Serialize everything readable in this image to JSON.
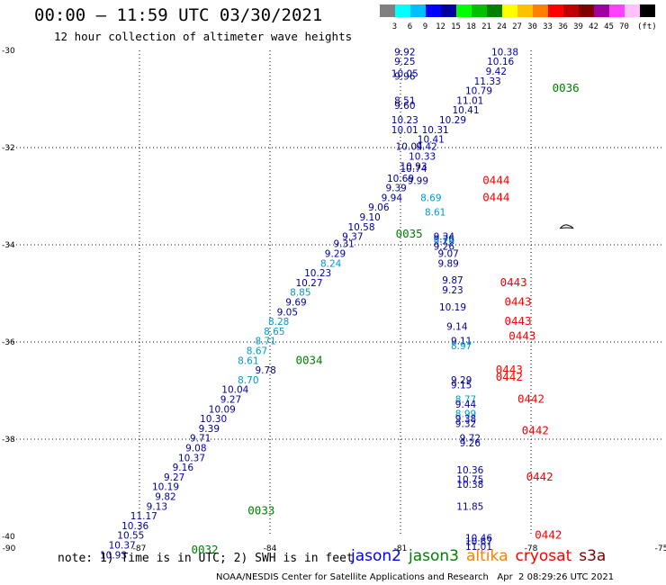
{
  "title": "00:00 – 11:59 UTC 03/30/2021",
  "subtitle": "12 hour collection of altimeter wave heights",
  "color_scale": {
    "unit": "(ft)",
    "bins": [
      {
        "label": "",
        "color": "#808080"
      },
      {
        "label": "3",
        "color": "#00ffff"
      },
      {
        "label": "6",
        "color": "#00bfff"
      },
      {
        "label": "9",
        "color": "#0000ff"
      },
      {
        "label": "12",
        "color": "#0000a0"
      },
      {
        "label": "15",
        "color": "#00ff00"
      },
      {
        "label": "18",
        "color": "#00c000"
      },
      {
        "label": "21",
        "color": "#008000"
      },
      {
        "label": "24",
        "color": "#ffff00"
      },
      {
        "label": "27",
        "color": "#ffc000"
      },
      {
        "label": "30",
        "color": "#ff8000"
      },
      {
        "label": "33",
        "color": "#ff0000"
      },
      {
        "label": "36",
        "color": "#c00000"
      },
      {
        "label": "39",
        "color": "#800000"
      },
      {
        "label": "42",
        "color": "#a000a0"
      },
      {
        "label": "45",
        "color": "#ff40ff"
      },
      {
        "label": "70",
        "color": "#ffc0ff"
      },
      {
        "label": "",
        "color": "#000000"
      }
    ]
  },
  "map": {
    "lon_range": [
      -90,
      -75
    ],
    "lat_range": [
      -40,
      -30
    ],
    "lon_ticks": [
      {
        "v": -90,
        "t": "-90"
      },
      {
        "v": -87,
        "t": "-87"
      },
      {
        "v": -84,
        "t": "-84"
      },
      {
        "v": -81,
        "t": "-81"
      },
      {
        "v": -78,
        "t": "-78"
      },
      {
        "v": -75,
        "t": "-75"
      }
    ],
    "lat_ticks": [
      {
        "v": -30,
        "t": "-30"
      },
      {
        "v": -32,
        "t": "-32"
      },
      {
        "v": -34,
        "t": "-34"
      },
      {
        "v": -36,
        "t": "-36"
      },
      {
        "v": -38,
        "t": "-38"
      },
      {
        "v": -40,
        "t": "-40"
      }
    ],
    "colors": {
      "dark_blue": "#0000a0",
      "light_blue": "#0099cc",
      "green": "#008000",
      "red": "#ff0000"
    },
    "observations": [
      {
        "lon": -80.9,
        "lat": -30.1,
        "t": "9.92",
        "c": "dark_blue"
      },
      {
        "lon": -80.9,
        "lat": -30.3,
        "t": "9.25",
        "c": "dark_blue"
      },
      {
        "lon": -80.9,
        "lat": -30.55,
        "t": "10.05",
        "c": "dark_blue"
      },
      {
        "lon": -80.9,
        "lat": -30.6,
        "t": "9.96",
        "c": "dark_blue"
      },
      {
        "lon": -78.6,
        "lat": -30.1,
        "t": "10.38",
        "c": "dark_blue"
      },
      {
        "lon": -78.7,
        "lat": -30.3,
        "t": "10.16",
        "c": "dark_blue"
      },
      {
        "lon": -78.8,
        "lat": -30.5,
        "t": "9.42",
        "c": "dark_blue"
      },
      {
        "lon": -79.0,
        "lat": -30.7,
        "t": "11.33",
        "c": "dark_blue"
      },
      {
        "lon": -79.2,
        "lat": -30.9,
        "t": "10.79",
        "c": "dark_blue"
      },
      {
        "lon": -79.4,
        "lat": -31.1,
        "t": "11.01",
        "c": "dark_blue"
      },
      {
        "lon": -79.5,
        "lat": -31.3,
        "t": "10.41",
        "c": "dark_blue"
      },
      {
        "lon": -80.9,
        "lat": -31.1,
        "t": "8.51",
        "c": "dark_blue"
      },
      {
        "lon": -80.9,
        "lat": -31.2,
        "t": "9.60",
        "c": "dark_blue"
      },
      {
        "lon": -80.9,
        "lat": -31.5,
        "t": "10.23",
        "c": "dark_blue"
      },
      {
        "lon": -79.8,
        "lat": -31.5,
        "t": "10.29",
        "c": "dark_blue"
      },
      {
        "lon": -80.9,
        "lat": -31.7,
        "t": "10.01",
        "c": "dark_blue"
      },
      {
        "lon": -80.2,
        "lat": -31.7,
        "t": "10.31",
        "c": "dark_blue"
      },
      {
        "lon": -80.3,
        "lat": -31.9,
        "t": "10.41",
        "c": "dark_blue"
      },
      {
        "lon": -80.8,
        "lat": -32.05,
        "t": "10.04",
        "c": "dark_blue"
      },
      {
        "lon": -80.4,
        "lat": -32.05,
        "t": "9.42",
        "c": "dark_blue"
      },
      {
        "lon": -80.5,
        "lat": -32.25,
        "t": "10.33",
        "c": "dark_blue"
      },
      {
        "lon": -80.7,
        "lat": -32.45,
        "t": "10.93",
        "c": "dark_blue"
      },
      {
        "lon": -80.7,
        "lat": -32.5,
        "t": "10.74",
        "c": "dark_blue"
      },
      {
        "lon": -81.0,
        "lat": -32.7,
        "t": "10.69",
        "c": "dark_blue"
      },
      {
        "lon": -80.6,
        "lat": -32.75,
        "t": "9.99",
        "c": "dark_blue"
      },
      {
        "lon": -81.1,
        "lat": -32.9,
        "t": "9.39",
        "c": "dark_blue"
      },
      {
        "lon": -81.2,
        "lat": -33.1,
        "t": "9.94",
        "c": "dark_blue"
      },
      {
        "lon": -80.3,
        "lat": -33.1,
        "t": "8.69",
        "c": "light_blue"
      },
      {
        "lon": -81.5,
        "lat": -33.3,
        "t": "9.06",
        "c": "dark_blue"
      },
      {
        "lon": -80.2,
        "lat": -33.4,
        "t": "8.61",
        "c": "light_blue"
      },
      {
        "lon": -81.7,
        "lat": -33.5,
        "t": "9.10",
        "c": "dark_blue"
      },
      {
        "lon": -81.9,
        "lat": -33.7,
        "t": "10.58",
        "c": "dark_blue"
      },
      {
        "lon": -82.1,
        "lat": -33.9,
        "t": "9.37",
        "c": "dark_blue"
      },
      {
        "lon": -80.0,
        "lat": -33.9,
        "t": "9.34",
        "c": "dark_blue"
      },
      {
        "lon": -80.0,
        "lat": -33.95,
        "t": "9.76",
        "c": "dark_blue"
      },
      {
        "lon": -80.0,
        "lat": -34.0,
        "t": "9.26",
        "c": "light_blue"
      },
      {
        "lon": -82.3,
        "lat": -34.05,
        "t": "9.31",
        "c": "dark_blue"
      },
      {
        "lon": -80.0,
        "lat": -34.1,
        "t": "9.26",
        "c": "dark_blue"
      },
      {
        "lon": -82.5,
        "lat": -34.25,
        "t": "9.29",
        "c": "dark_blue"
      },
      {
        "lon": -79.9,
        "lat": -34.25,
        "t": "9.07",
        "c": "dark_blue"
      },
      {
        "lon": -82.6,
        "lat": -34.45,
        "t": "8.24",
        "c": "light_blue"
      },
      {
        "lon": -79.9,
        "lat": -34.45,
        "t": "9.89",
        "c": "dark_blue"
      },
      {
        "lon": -82.9,
        "lat": -34.65,
        "t": "10.23",
        "c": "dark_blue"
      },
      {
        "lon": -79.8,
        "lat": -34.8,
        "t": "9.87",
        "c": "dark_blue"
      },
      {
        "lon": -83.1,
        "lat": -34.85,
        "t": "10.27",
        "c": "dark_blue"
      },
      {
        "lon": -79.8,
        "lat": -35.0,
        "t": "9.23",
        "c": "dark_blue"
      },
      {
        "lon": -83.3,
        "lat": -35.05,
        "t": "8.85",
        "c": "light_blue"
      },
      {
        "lon": -83.4,
        "lat": -35.25,
        "t": "9.69",
        "c": "dark_blue"
      },
      {
        "lon": -79.8,
        "lat": -35.35,
        "t": "10.19",
        "c": "dark_blue"
      },
      {
        "lon": -83.6,
        "lat": -35.45,
        "t": "9.05",
        "c": "dark_blue"
      },
      {
        "lon": -83.8,
        "lat": -35.65,
        "t": "8.28",
        "c": "light_blue"
      },
      {
        "lon": -79.7,
        "lat": -35.75,
        "t": "9.14",
        "c": "dark_blue"
      },
      {
        "lon": -83.9,
        "lat": -35.85,
        "t": "8.65",
        "c": "light_blue"
      },
      {
        "lon": -84.1,
        "lat": -36.05,
        "t": "8.71",
        "c": "light_blue"
      },
      {
        "lon": -79.6,
        "lat": -36.05,
        "t": "9.11",
        "c": "dark_blue"
      },
      {
        "lon": -79.6,
        "lat": -36.15,
        "t": "8.97",
        "c": "light_blue"
      },
      {
        "lon": -84.3,
        "lat": -36.25,
        "t": "8.67",
        "c": "light_blue"
      },
      {
        "lon": -84.5,
        "lat": -36.45,
        "t": "8.61",
        "c": "light_blue"
      },
      {
        "lon": -84.1,
        "lat": -36.65,
        "t": "9.78",
        "c": "dark_blue"
      },
      {
        "lon": -84.5,
        "lat": -36.85,
        "t": "8.70",
        "c": "light_blue"
      },
      {
        "lon": -79.6,
        "lat": -36.85,
        "t": "9.29",
        "c": "dark_blue"
      },
      {
        "lon": -79.6,
        "lat": -36.95,
        "t": "9.15",
        "c": "dark_blue"
      },
      {
        "lon": -84.8,
        "lat": -37.05,
        "t": "10.04",
        "c": "dark_blue"
      },
      {
        "lon": -84.9,
        "lat": -37.25,
        "t": "9.27",
        "c": "dark_blue"
      },
      {
        "lon": -79.5,
        "lat": -37.25,
        "t": "8.77",
        "c": "light_blue"
      },
      {
        "lon": -79.5,
        "lat": -37.35,
        "t": "9.44",
        "c": "dark_blue"
      },
      {
        "lon": -85.1,
        "lat": -37.45,
        "t": "10.09",
        "c": "dark_blue"
      },
      {
        "lon": -79.5,
        "lat": -37.55,
        "t": "8.99",
        "c": "light_blue"
      },
      {
        "lon": -79.5,
        "lat": -37.65,
        "t": "9.38",
        "c": "dark_blue"
      },
      {
        "lon": -85.3,
        "lat": -37.65,
        "t": "10.30",
        "c": "dark_blue"
      },
      {
        "lon": -79.5,
        "lat": -37.75,
        "t": "9.32",
        "c": "dark_blue"
      },
      {
        "lon": -85.4,
        "lat": -37.85,
        "t": "9.39",
        "c": "dark_blue"
      },
      {
        "lon": -85.6,
        "lat": -38.05,
        "t": "9.71",
        "c": "dark_blue"
      },
      {
        "lon": -79.4,
        "lat": -38.05,
        "t": "9.72",
        "c": "dark_blue"
      },
      {
        "lon": -79.4,
        "lat": -38.15,
        "t": "9.26",
        "c": "dark_blue"
      },
      {
        "lon": -85.7,
        "lat": -38.25,
        "t": "9.08",
        "c": "dark_blue"
      },
      {
        "lon": -85.8,
        "lat": -38.45,
        "t": "10.37",
        "c": "dark_blue"
      },
      {
        "lon": -86.0,
        "lat": -38.65,
        "t": "9.16",
        "c": "dark_blue"
      },
      {
        "lon": -79.4,
        "lat": -38.7,
        "t": "10.36",
        "c": "dark_blue"
      },
      {
        "lon": -86.2,
        "lat": -38.85,
        "t": "9.27",
        "c": "dark_blue"
      },
      {
        "lon": -79.4,
        "lat": -38.9,
        "t": "10.75",
        "c": "dark_blue"
      },
      {
        "lon": -86.4,
        "lat": -39.05,
        "t": "10.19",
        "c": "dark_blue"
      },
      {
        "lon": -79.4,
        "lat": -39.0,
        "t": "10.38",
        "c": "dark_blue"
      },
      {
        "lon": -86.4,
        "lat": -39.25,
        "t": "9.82",
        "c": "dark_blue"
      },
      {
        "lon": -86.6,
        "lat": -39.45,
        "t": "9.13",
        "c": "dark_blue"
      },
      {
        "lon": -79.4,
        "lat": -39.45,
        "t": "11.85",
        "c": "dark_blue"
      },
      {
        "lon": -86.9,
        "lat": -39.65,
        "t": "11.17",
        "c": "dark_blue"
      },
      {
        "lon": -87.1,
        "lat": -39.85,
        "t": "10.36",
        "c": "dark_blue"
      },
      {
        "lon": -87.2,
        "lat": -40.05,
        "t": "10.55",
        "c": "dark_blue"
      },
      {
        "lon": -79.2,
        "lat": -40.1,
        "t": "10.46",
        "c": "dark_blue"
      },
      {
        "lon": -79.2,
        "lat": -40.18,
        "t": "10.67",
        "c": "dark_blue"
      },
      {
        "lon": -87.4,
        "lat": -40.25,
        "t": "10.37",
        "c": "dark_blue"
      },
      {
        "lon": -79.2,
        "lat": -40.28,
        "t": "11.01",
        "c": "dark_blue"
      },
      {
        "lon": -87.6,
        "lat": -40.45,
        "t": "10.93",
        "c": "dark_blue"
      }
    ],
    "pass_labels": [
      {
        "lon": -77.2,
        "lat": -30.85,
        "t": "0036",
        "c": "green"
      },
      {
        "lon": -78.8,
        "lat": -32.75,
        "t": "0444",
        "c": "red"
      },
      {
        "lon": -78.8,
        "lat": -33.1,
        "t": "0444",
        "c": "red"
      },
      {
        "lon": -80.8,
        "lat": -33.85,
        "t": "0035",
        "c": "green"
      },
      {
        "lon": -78.4,
        "lat": -34.85,
        "t": "0443",
        "c": "red"
      },
      {
        "lon": -78.3,
        "lat": -35.25,
        "t": "0443",
        "c": "red"
      },
      {
        "lon": -78.3,
        "lat": -35.65,
        "t": "0443",
        "c": "red"
      },
      {
        "lon": -78.2,
        "lat": -35.95,
        "t": "0443",
        "c": "red"
      },
      {
        "lon": -83.1,
        "lat": -36.45,
        "t": "0034",
        "c": "green"
      },
      {
        "lon": -78.5,
        "lat": -36.65,
        "t": "0443",
        "c": "red"
      },
      {
        "lon": -78.5,
        "lat": -36.8,
        "t": "0442",
        "c": "red"
      },
      {
        "lon": -78.0,
        "lat": -37.25,
        "t": "0442",
        "c": "red"
      },
      {
        "lon": -77.9,
        "lat": -37.9,
        "t": "0442",
        "c": "red"
      },
      {
        "lon": -77.8,
        "lat": -38.85,
        "t": "0442",
        "c": "red"
      },
      {
        "lon": -84.2,
        "lat": -39.55,
        "t": "0033",
        "c": "green"
      },
      {
        "lon": -77.6,
        "lat": -40.05,
        "t": "0442",
        "c": "red"
      },
      {
        "lon": -85.5,
        "lat": -40.35,
        "t": "0032",
        "c": "green"
      }
    ]
  },
  "note": "note: 1) Time is in UTC; 2) SWH is in feet",
  "legend": [
    {
      "label": "jason2",
      "color": "#0000ff"
    },
    {
      "label": "jason3",
      "color": "#008000"
    },
    {
      "label": "altika",
      "color": "#ff8000"
    },
    {
      "label": "cryosat",
      "color": "#ff0000"
    },
    {
      "label": "s3a",
      "color": "#800000"
    }
  ],
  "credit": "NOAA/NESDIS Center for Satellite Applications and Research   Apr  2 08:29:26 UTC 2021"
}
